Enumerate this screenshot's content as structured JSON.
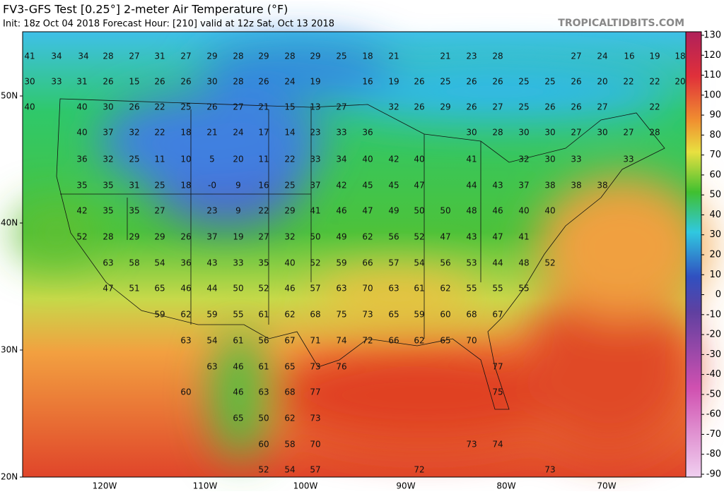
{
  "header": {
    "title": "FV3-GFS Test [0.25°] 2-meter Air Temperature (°F)",
    "subtitle": "Init: 18z Oct 04 2018   Forecast Hour: [210]   valid at 12z Sat, Oct 13 2018",
    "site": "TROPICALTIDBITS.COM"
  },
  "colorbar": {
    "ticks": [
      130,
      120,
      110,
      100,
      90,
      80,
      70,
      60,
      50,
      40,
      30,
      20,
      10,
      0,
      -10,
      -20,
      -30,
      -40,
      -50,
      -60,
      -70,
      -80,
      -90
    ]
  },
  "latitudes": [
    "50N",
    "40N",
    "30N",
    "20N"
  ],
  "longitudes": [
    "120W",
    "110W",
    "100W",
    "90W",
    "80W",
    "70W"
  ],
  "map_labels": {
    "rows": [
      [
        "41",
        "34",
        "34",
        "28",
        "27",
        "31",
        "27",
        "29",
        "28",
        "29",
        "28",
        "29",
        "25",
        "18",
        "21",
        "21",
        "23",
        "28",
        "27",
        "24",
        "16",
        "19",
        "18"
      ],
      [
        "30",
        "33",
        "31",
        "26",
        "15",
        "26",
        "26",
        "30",
        "28",
        "26",
        "24",
        "19",
        "16",
        "19",
        "26",
        "25",
        "26",
        "26",
        "25",
        "25",
        "26",
        "20",
        "22",
        "22",
        "20"
      ],
      [
        "40",
        "40",
        "30",
        "26",
        "22",
        "25",
        "26",
        "27",
        "21",
        "15",
        "13",
        "27",
        "32",
        "26",
        "29",
        "26",
        "27",
        "25",
        "26",
        "26",
        "27",
        "22"
      ],
      [
        "40",
        "37",
        "32",
        "22",
        "18",
        "21",
        "24",
        "17",
        "14",
        "23",
        "33",
        "36",
        "30",
        "28",
        "30",
        "30",
        "27",
        "30",
        "27",
        "28"
      ],
      [
        "36",
        "32",
        "25",
        "11",
        "10",
        "5",
        "20",
        "11",
        "22",
        "33",
        "34",
        "40",
        "42",
        "40",
        "41",
        "32",
        "30",
        "33",
        "33"
      ],
      [
        "35",
        "35",
        "31",
        "25",
        "18",
        "-0",
        "9",
        "16",
        "25",
        "37",
        "42",
        "45",
        "45",
        "47",
        "44",
        "43",
        "37",
        "38",
        "38",
        "38"
      ],
      [
        "42",
        "35",
        "35",
        "27",
        "23",
        "9",
        "22",
        "29",
        "41",
        "46",
        "47",
        "49",
        "50",
        "50",
        "48",
        "46",
        "40",
        "40"
      ],
      [
        "52",
        "28",
        "29",
        "29",
        "26",
        "37",
        "19",
        "27",
        "32",
        "50",
        "49",
        "62",
        "56",
        "52",
        "47",
        "43",
        "47",
        "41"
      ],
      [
        "63",
        "58",
        "54",
        "36",
        "43",
        "33",
        "35",
        "40",
        "52",
        "59",
        "66",
        "57",
        "54",
        "56",
        "53",
        "44",
        "48",
        "52"
      ],
      [
        "47",
        "51",
        "65",
        "46",
        "44",
        "50",
        "52",
        "46",
        "57",
        "63",
        "70",
        "63",
        "61",
        "62",
        "55",
        "55",
        "55"
      ],
      [
        "59",
        "62",
        "59",
        "55",
        "61",
        "62",
        "68",
        "75",
        "73",
        "65",
        "59",
        "60",
        "68",
        "67"
      ],
      [
        "63",
        "54",
        "61",
        "56",
        "67",
        "71",
        "74",
        "72",
        "66",
        "62",
        "65",
        "70"
      ],
      [
        "63",
        "46",
        "61",
        "65",
        "73",
        "76",
        "77"
      ],
      [
        "60",
        "46",
        "63",
        "68",
        "77",
        "75"
      ],
      [
        "65",
        "50",
        "62",
        "73"
      ],
      [
        "60",
        "58",
        "70",
        "73",
        "74"
      ],
      [
        "52",
        "54",
        "57",
        "72",
        "73"
      ]
    ]
  }
}
